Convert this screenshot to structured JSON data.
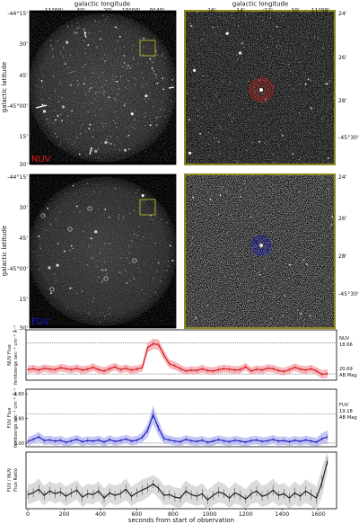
{
  "images": {
    "top_axis_label_left": "galactic longitude",
    "top_axis_label_right": "galactic longitude",
    "y_axis_label": "galactic latitude",
    "left_x_ticks": [
      "11°00'",
      "40'",
      "20'",
      "10°00'",
      "9°40'"
    ],
    "right_x_ticks": [
      "16'",
      "14'",
      ":12'",
      "10'",
      "11°08'"
    ],
    "left_y_ticks": [
      "-44°15'",
      "30'",
      "45'",
      "-45°00'",
      "15'",
      "30'"
    ],
    "right_y_ticks": [
      "24'",
      "26'",
      "28'",
      "-45°30'"
    ],
    "nuv_label": "NUV",
    "fuv_label": "FUV",
    "frame_color": "#8f8a20",
    "nuv_color": "#e01515",
    "fuv_color": "#1515d8"
  },
  "chart_data": [
    {
      "type": "line",
      "panel": "nuv_flux",
      "ylabel_line1": "NUV Flux",
      "ylabel_line2": "femtoergs sec⁻¹ cm⁻² Å⁻¹",
      "right_label_band": "NUV",
      "right_label_upper": "18.66",
      "right_label_lower_mag": "20.69",
      "right_label_lower_unit": "AB Mag",
      "ref_upper": 0.78,
      "ref_lower": 0.13,
      "ylim": [
        0,
        1.05
      ],
      "color": "#d01010",
      "band_color": "#f4a0a8",
      "x": [
        0,
        30,
        60,
        90,
        120,
        150,
        180,
        210,
        240,
        270,
        300,
        330,
        360,
        390,
        420,
        450,
        480,
        510,
        540,
        570,
        600,
        630,
        660,
        690,
        720,
        750,
        780,
        810,
        840,
        870,
        900,
        930,
        960,
        990,
        1020,
        1050,
        1080,
        1110,
        1140,
        1170,
        1200,
        1230,
        1260,
        1290,
        1320,
        1350,
        1380,
        1410,
        1440,
        1470,
        1500,
        1530,
        1560,
        1590,
        1620,
        1650
      ],
      "y": [
        0.22,
        0.24,
        0.21,
        0.25,
        0.23,
        0.22,
        0.26,
        0.24,
        0.22,
        0.25,
        0.21,
        0.23,
        0.27,
        0.22,
        0.19,
        0.24,
        0.28,
        0.22,
        0.25,
        0.21,
        0.23,
        0.26,
        0.68,
        0.76,
        0.74,
        0.52,
        0.34,
        0.3,
        0.24,
        0.19,
        0.21,
        0.2,
        0.24,
        0.2,
        0.19,
        0.22,
        0.24,
        0.23,
        0.21,
        0.22,
        0.28,
        0.19,
        0.23,
        0.21,
        0.25,
        0.24,
        0.2,
        0.18,
        0.22,
        0.27,
        0.23,
        0.21,
        0.24,
        0.19,
        0.12,
        0.14
      ],
      "err": [
        0.08,
        0.08,
        0.08,
        0.08,
        0.08,
        0.08,
        0.08,
        0.08,
        0.08,
        0.08,
        0.08,
        0.08,
        0.08,
        0.08,
        0.08,
        0.08,
        0.08,
        0.08,
        0.08,
        0.08,
        0.08,
        0.08,
        0.1,
        0.11,
        0.11,
        0.1,
        0.09,
        0.09,
        0.08,
        0.08,
        0.08,
        0.08,
        0.08,
        0.08,
        0.08,
        0.08,
        0.08,
        0.08,
        0.08,
        0.08,
        0.08,
        0.08,
        0.08,
        0.08,
        0.08,
        0.08,
        0.08,
        0.08,
        0.08,
        0.08,
        0.08,
        0.08,
        0.08,
        0.08,
        0.09,
        0.09
      ],
      "yticks": []
    },
    {
      "type": "line",
      "panel": "fuv_flux",
      "ylabel_line1": "FUV Flux",
      "ylabel_line2": "femtoergs sec⁻¹ cm⁻² Å⁻¹",
      "right_label_band": "FUV",
      "right_label_upper": "19.18",
      "right_label_lower_mag": "AB Mag",
      "ref_upper": 0.95,
      "ref_lower": 0.0,
      "ylim": [
        -0.12,
        1.75
      ],
      "color": "#1010c0",
      "band_color": "#b4b4f0",
      "yticks": [
        "1.60",
        "0.80",
        "0.00"
      ],
      "yticks_values": [
        1.6,
        0.8,
        0.0
      ],
      "x": [
        0,
        30,
        60,
        90,
        120,
        150,
        180,
        210,
        240,
        270,
        300,
        330,
        360,
        390,
        420,
        450,
        480,
        510,
        540,
        570,
        600,
        630,
        660,
        690,
        720,
        750,
        780,
        810,
        840,
        870,
        900,
        930,
        960,
        990,
        1020,
        1050,
        1080,
        1110,
        1140,
        1170,
        1200,
        1230,
        1260,
        1290,
        1320,
        1350,
        1380,
        1410,
        1440,
        1470,
        1500,
        1530,
        1560,
        1590,
        1620,
        1650
      ],
      "y": [
        0.05,
        0.12,
        0.2,
        0.08,
        0.1,
        0.06,
        0.09,
        0.02,
        0.07,
        0.12,
        0.04,
        0.08,
        0.06,
        0.1,
        0.03,
        0.11,
        0.05,
        0.08,
        0.13,
        0.06,
        0.09,
        0.18,
        0.42,
        0.92,
        0.48,
        0.14,
        0.1,
        0.06,
        0.04,
        0.12,
        0.07,
        0.05,
        0.09,
        0.02,
        0.06,
        0.11,
        0.07,
        0.04,
        0.09,
        0.06,
        0.03,
        0.08,
        0.1,
        0.05,
        0.07,
        0.12,
        0.06,
        0.08,
        0.04,
        0.09,
        0.05,
        0.1,
        0.06,
        0.03,
        0.14,
        0.2
      ],
      "err": [
        0.14,
        0.14,
        0.16,
        0.14,
        0.14,
        0.14,
        0.14,
        0.14,
        0.14,
        0.14,
        0.14,
        0.14,
        0.14,
        0.14,
        0.14,
        0.14,
        0.14,
        0.14,
        0.14,
        0.14,
        0.14,
        0.16,
        0.22,
        0.3,
        0.24,
        0.16,
        0.14,
        0.14,
        0.14,
        0.14,
        0.14,
        0.14,
        0.14,
        0.14,
        0.14,
        0.14,
        0.14,
        0.14,
        0.14,
        0.14,
        0.14,
        0.14,
        0.14,
        0.14,
        0.14,
        0.14,
        0.14,
        0.14,
        0.14,
        0.14,
        0.14,
        0.14,
        0.14,
        0.14,
        0.18,
        0.22
      ]
    },
    {
      "type": "line",
      "panel": "fuv_nuv_ratio",
      "ylabel_line1": "FUV / NUV",
      "ylabel_line2": "Flux Ratio",
      "xlabel": "seconds from start of observation",
      "xticks": [
        0,
        200,
        400,
        600,
        800,
        1000,
        1200,
        1400,
        1600
      ],
      "xlim": [
        -10,
        1700
      ],
      "ylim": [
        -0.3,
        2.9
      ],
      "color": "#111111",
      "band_color": "#cfcfcf",
      "x": [
        0,
        30,
        60,
        90,
        120,
        150,
        180,
        210,
        240,
        270,
        300,
        330,
        360,
        390,
        420,
        450,
        480,
        510,
        540,
        570,
        600,
        630,
        660,
        690,
        720,
        750,
        780,
        810,
        840,
        870,
        900,
        930,
        960,
        990,
        1020,
        1050,
        1080,
        1110,
        1140,
        1170,
        1200,
        1230,
        1260,
        1290,
        1320,
        1350,
        1380,
        1410,
        1440,
        1470,
        1500,
        1530,
        1560,
        1590,
        1620,
        1650
      ],
      "y": [
        0.5,
        0.6,
        0.8,
        0.45,
        0.7,
        0.55,
        0.65,
        0.4,
        0.6,
        0.75,
        0.35,
        0.55,
        0.5,
        0.7,
        0.3,
        0.6,
        0.45,
        0.55,
        0.8,
        0.4,
        0.6,
        0.75,
        0.9,
        1.1,
        0.85,
        0.45,
        0.5,
        0.35,
        0.3,
        0.7,
        0.5,
        0.4,
        0.55,
        0.2,
        0.45,
        0.65,
        0.55,
        0.3,
        0.6,
        0.45,
        0.25,
        0.55,
        0.7,
        0.4,
        0.5,
        0.75,
        0.45,
        0.55,
        0.3,
        0.6,
        0.4,
        0.7,
        0.5,
        0.3,
        1.2,
        2.4
      ],
      "err": [
        0.55,
        0.55,
        0.6,
        0.55,
        0.55,
        0.55,
        0.55,
        0.55,
        0.55,
        0.55,
        0.55,
        0.55,
        0.55,
        0.55,
        0.55,
        0.55,
        0.55,
        0.55,
        0.6,
        0.55,
        0.55,
        0.6,
        0.55,
        0.5,
        0.55,
        0.55,
        0.55,
        0.55,
        0.55,
        0.6,
        0.55,
        0.55,
        0.6,
        0.55,
        0.55,
        0.6,
        0.55,
        0.55,
        0.6,
        0.55,
        0.55,
        0.6,
        0.65,
        0.6,
        0.6,
        0.65,
        0.6,
        0.6,
        0.6,
        0.65,
        0.6,
        0.65,
        0.65,
        0.65,
        0.8,
        0.55
      ]
    }
  ]
}
